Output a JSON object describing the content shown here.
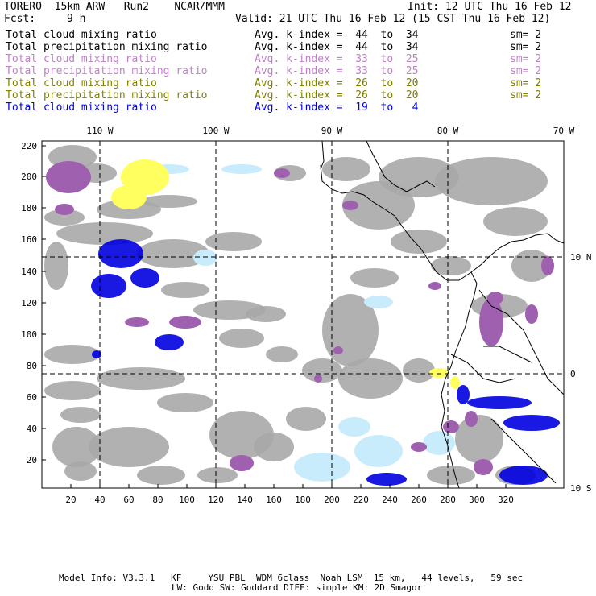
{
  "header": {
    "model": "TORERO  15km ARW   Run2    NCAR/MMM",
    "init": "Init: 12 UTC Thu 16 Feb 12",
    "fcst_label": "Fcst:",
    "fcst_value": "9 h",
    "valid": "Valid: 21 UTC Thu 16 Feb 12 (15 CST Thu 16 Feb 12)"
  },
  "legend": [
    {
      "field": "Total cloud mixing ratio",
      "kindex": "Avg. k-index =  44  to  34",
      "sm": "sm= 2",
      "color": "#000000"
    },
    {
      "field": "Total precipitation mixing ratio",
      "kindex": "Avg. k-index =  44  to  34",
      "sm": "sm= 2",
      "color": "#000000"
    },
    {
      "field": "Total cloud mixing ratio",
      "kindex": "Avg. k-index =  33  to  25",
      "sm": "sm= 2",
      "color": "#c080c8"
    },
    {
      "field": "Total precipitation mixing ratio",
      "kindex": "Avg. k-index =  33  to  25",
      "sm": "sm= 2",
      "color": "#c080c8"
    },
    {
      "field": "Total cloud mixing ratio",
      "kindex": "Avg. k-index =  26  to  20",
      "sm": "sm= 2",
      "color": "#808000"
    },
    {
      "field": "Total precipitation mixing ratio",
      "kindex": "Avg. k-index =  26  to  20",
      "sm": "sm= 2",
      "color": "#808000"
    },
    {
      "field": "Total cloud mixing ratio",
      "kindex": "Avg. k-index =  19  to   4",
      "sm": "",
      "color": "#0000e0"
    }
  ],
  "map": {
    "lon_labels": [
      "110 W",
      "100 W",
      "90 W",
      "80 W",
      "70 W"
    ],
    "lat_labels": [
      "10 N",
      "0",
      "10 S"
    ],
    "x_ticks": [
      "20",
      "40",
      "60",
      "80",
      "100",
      "120",
      "140",
      "160",
      "180",
      "200",
      "220",
      "240",
      "260",
      "280",
      "300",
      "320"
    ],
    "y_ticks": [
      "220",
      "200",
      "180",
      "160",
      "140",
      "120",
      "100",
      "80",
      "60",
      "40",
      "20"
    ],
    "colors": {
      "gray": "#a8a8a8",
      "purple": "#a060b0",
      "yellow": "#ffff60",
      "lightblue": "#c8ecfc",
      "blue": "#0000e0",
      "coast": "#000000"
    }
  },
  "footer": {
    "line1": "Model Info: V3.3.1   KF     YSU PBL  WDM 6class  Noah LSM  15 km,   44 levels,   59 sec",
    "line2": "LW: Godd SW: Goddard DIFF: simple KM: 2D Smagor"
  }
}
